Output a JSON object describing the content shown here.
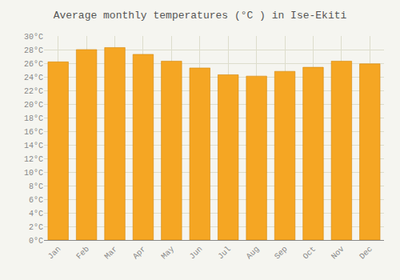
{
  "chart_data": {
    "type": "bar",
    "title": "Average monthly temperatures (°C ) in Ise-Ekiti",
    "categories": [
      "Jan",
      "Feb",
      "Mar",
      "Apr",
      "May",
      "Jun",
      "Jul",
      "Aug",
      "Sep",
      "Oct",
      "Nov",
      "Dec"
    ],
    "values": [
      26.2,
      28.0,
      28.3,
      27.3,
      26.3,
      25.3,
      24.3,
      24.1,
      24.8,
      25.4,
      26.3,
      25.9
    ],
    "color": "#F5A623",
    "ylim": [
      0,
      30
    ],
    "yticks": [
      {
        "value": 0,
        "label": "0°C"
      },
      {
        "value": 2,
        "label": "2°C"
      },
      {
        "value": 4,
        "label": "4°C"
      },
      {
        "value": 6,
        "label": "6°C"
      },
      {
        "value": 8,
        "label": "8°C"
      },
      {
        "value": 10,
        "label": "10°C"
      },
      {
        "value": 12,
        "label": "12°C"
      },
      {
        "value": 14,
        "label": "14°C"
      },
      {
        "value": 16,
        "label": "16°C"
      },
      {
        "value": 18,
        "label": "18°C"
      },
      {
        "value": 20,
        "label": "20°C"
      },
      {
        "value": 22,
        "label": "22°C"
      },
      {
        "value": 24,
        "label": "24°C"
      },
      {
        "value": 26,
        "label": "26°C"
      },
      {
        "value": 28,
        "label": "28°C"
      },
      {
        "value": 30,
        "label": "30°C"
      }
    ],
    "grid": true
  }
}
